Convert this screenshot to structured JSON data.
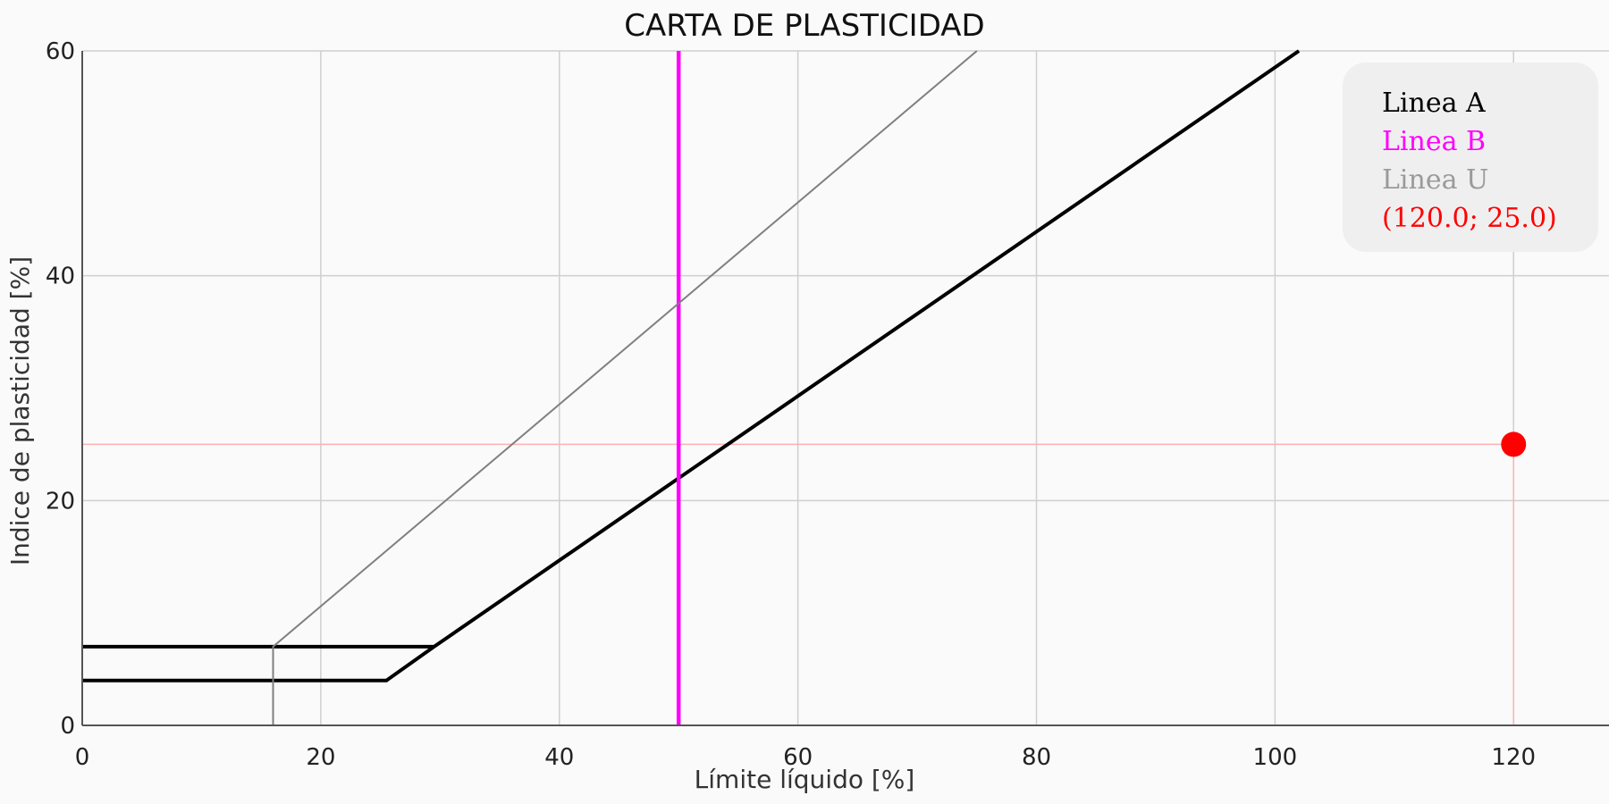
{
  "chart_data": {
    "type": "line",
    "title": "CARTA DE PLASTICIDAD",
    "xlabel": "Límite líquido [%]",
    "ylabel": "Indice de plasticidad [%]",
    "xlim": [
      0,
      128
    ],
    "ylim": [
      0,
      60
    ],
    "x_ticks": [
      0,
      20,
      40,
      60,
      80,
      100,
      120
    ],
    "y_ticks": [
      0,
      20,
      40,
      60
    ],
    "grid": true,
    "legend_position": "top-right",
    "series": [
      {
        "name": "Linea A",
        "color": "#000000",
        "points": [
          [
            0,
            4
          ],
          [
            25.5,
            4
          ],
          [
            29.5,
            7
          ],
          [
            102,
            60
          ]
        ]
      },
      {
        "name": "Linea A",
        "color": "#000000",
        "points": [
          [
            0,
            7
          ],
          [
            29.5,
            7
          ]
        ]
      },
      {
        "name": "Linea B",
        "color": "#ff00ff",
        "points": [
          [
            50,
            0
          ],
          [
            50,
            60
          ]
        ]
      },
      {
        "name": "Linea U",
        "color": "#808080",
        "points": [
          [
            16,
            0
          ],
          [
            16,
            7
          ],
          [
            75,
            60
          ]
        ]
      }
    ],
    "point": {
      "x": 120.0,
      "y": 25.0,
      "label": "(120.0; 25.0)",
      "color": "#ff0000"
    },
    "legend": [
      {
        "label": "Linea A",
        "color": "#000000"
      },
      {
        "label": "Linea B",
        "color": "#ff00ff"
      },
      {
        "label": "Linea U",
        "color": "#9a9a9a"
      },
      {
        "label": "(120.0; 25.0)",
        "color": "#ff0000"
      }
    ]
  }
}
